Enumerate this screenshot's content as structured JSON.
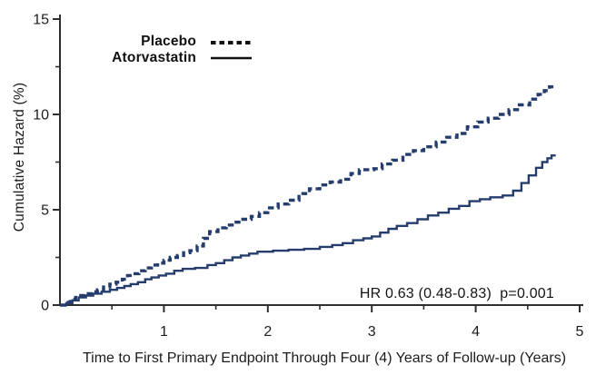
{
  "chart_data": {
    "type": "line",
    "subtype": "step-cumulative-hazard",
    "title": "",
    "xlabel": "Time to First Primary Endpoint Through Four (4) Years of Follow-up (Years)",
    "ylabel": "Cumulative Hazard (%)",
    "xlim": [
      0,
      5
    ],
    "ylim": [
      0,
      15
    ],
    "x_ticks": [
      1,
      2,
      3,
      4,
      5
    ],
    "x_minor_ticks": [
      0.5,
      1.5,
      2.5,
      3.5,
      4.5
    ],
    "y_ticks": [
      0,
      5,
      10,
      15
    ],
    "y_minor_ticks": [
      2.5,
      7.5,
      12.5
    ],
    "grid": false,
    "legend_position": "top-left-inside",
    "axis_color": "#2e2e2e",
    "curve_color": "#253d6d",
    "legend_sample_color": "#111111",
    "annotation": {
      "text": "HR 0.63 (0.48-0.83)  p=0.001",
      "x": 4.78,
      "y": 0.9,
      "align": "right"
    },
    "series": [
      {
        "name": "Placebo",
        "line_style": "dashed",
        "color": "#253d6d",
        "points": [
          [
            0.0,
            0.0
          ],
          [
            0.05,
            0.15
          ],
          [
            0.1,
            0.3
          ],
          [
            0.15,
            0.4
          ],
          [
            0.2,
            0.5
          ],
          [
            0.25,
            0.6
          ],
          [
            0.3,
            0.7
          ],
          [
            0.36,
            0.8
          ],
          [
            0.42,
            0.95
          ],
          [
            0.48,
            1.1
          ],
          [
            0.54,
            1.2
          ],
          [
            0.6,
            1.35
          ],
          [
            0.65,
            1.55
          ],
          [
            0.7,
            1.65
          ],
          [
            0.76,
            1.8
          ],
          [
            0.82,
            1.95
          ],
          [
            0.88,
            2.1
          ],
          [
            0.94,
            2.2
          ],
          [
            1.0,
            2.35
          ],
          [
            1.06,
            2.5
          ],
          [
            1.13,
            2.6
          ],
          [
            1.19,
            2.75
          ],
          [
            1.25,
            2.85
          ],
          [
            1.32,
            3.1
          ],
          [
            1.38,
            3.5
          ],
          [
            1.44,
            3.85
          ],
          [
            1.52,
            4.05
          ],
          [
            1.6,
            4.2
          ],
          [
            1.68,
            4.35
          ],
          [
            1.76,
            4.5
          ],
          [
            1.84,
            4.65
          ],
          [
            1.92,
            4.85
          ],
          [
            2.0,
            5.1
          ],
          [
            2.1,
            5.3
          ],
          [
            2.2,
            5.5
          ],
          [
            2.3,
            5.85
          ],
          [
            2.4,
            6.1
          ],
          [
            2.5,
            6.3
          ],
          [
            2.6,
            6.45
          ],
          [
            2.7,
            6.6
          ],
          [
            2.8,
            6.9
          ],
          [
            2.88,
            7.1
          ],
          [
            3.02,
            7.15
          ],
          [
            3.1,
            7.4
          ],
          [
            3.2,
            7.6
          ],
          [
            3.3,
            7.9
          ],
          [
            3.4,
            8.1
          ],
          [
            3.5,
            8.3
          ],
          [
            3.62,
            8.55
          ],
          [
            3.72,
            8.8
          ],
          [
            3.82,
            9.0
          ],
          [
            3.92,
            9.35
          ],
          [
            4.02,
            9.6
          ],
          [
            4.12,
            9.8
          ],
          [
            4.22,
            10.0
          ],
          [
            4.32,
            10.25
          ],
          [
            4.42,
            10.5
          ],
          [
            4.52,
            10.8
          ],
          [
            4.6,
            11.05
          ],
          [
            4.66,
            11.25
          ],
          [
            4.71,
            11.45
          ],
          [
            4.75,
            11.5
          ]
        ]
      },
      {
        "name": "Atorvastatin",
        "line_style": "solid",
        "color": "#253d6d",
        "points": [
          [
            0.0,
            0.0
          ],
          [
            0.06,
            0.1
          ],
          [
            0.12,
            0.25
          ],
          [
            0.18,
            0.4
          ],
          [
            0.25,
            0.5
          ],
          [
            0.32,
            0.6
          ],
          [
            0.4,
            0.7
          ],
          [
            0.48,
            0.8
          ],
          [
            0.55,
            0.9
          ],
          [
            0.62,
            1.0
          ],
          [
            0.68,
            1.1
          ],
          [
            0.75,
            1.2
          ],
          [
            0.82,
            1.35
          ],
          [
            0.88,
            1.45
          ],
          [
            0.95,
            1.55
          ],
          [
            1.02,
            1.65
          ],
          [
            1.1,
            1.8
          ],
          [
            1.18,
            1.9
          ],
          [
            1.3,
            1.95
          ],
          [
            1.42,
            2.1
          ],
          [
            1.5,
            2.2
          ],
          [
            1.58,
            2.35
          ],
          [
            1.66,
            2.5
          ],
          [
            1.74,
            2.6
          ],
          [
            1.82,
            2.7
          ],
          [
            1.9,
            2.8
          ],
          [
            2.05,
            2.85
          ],
          [
            2.2,
            2.9
          ],
          [
            2.35,
            2.95
          ],
          [
            2.5,
            3.05
          ],
          [
            2.62,
            3.15
          ],
          [
            2.72,
            3.25
          ],
          [
            2.82,
            3.4
          ],
          [
            2.92,
            3.5
          ],
          [
            3.0,
            3.6
          ],
          [
            3.08,
            3.8
          ],
          [
            3.16,
            4.0
          ],
          [
            3.24,
            4.15
          ],
          [
            3.34,
            4.3
          ],
          [
            3.44,
            4.5
          ],
          [
            3.54,
            4.7
          ],
          [
            3.64,
            4.85
          ],
          [
            3.74,
            5.05
          ],
          [
            3.84,
            5.2
          ],
          [
            3.94,
            5.45
          ],
          [
            4.04,
            5.55
          ],
          [
            4.14,
            5.65
          ],
          [
            4.26,
            5.75
          ],
          [
            4.36,
            6.0
          ],
          [
            4.44,
            6.4
          ],
          [
            4.51,
            6.8
          ],
          [
            4.58,
            7.2
          ],
          [
            4.64,
            7.5
          ],
          [
            4.69,
            7.7
          ],
          [
            4.73,
            7.85
          ],
          [
            4.76,
            7.9
          ]
        ]
      }
    ]
  }
}
